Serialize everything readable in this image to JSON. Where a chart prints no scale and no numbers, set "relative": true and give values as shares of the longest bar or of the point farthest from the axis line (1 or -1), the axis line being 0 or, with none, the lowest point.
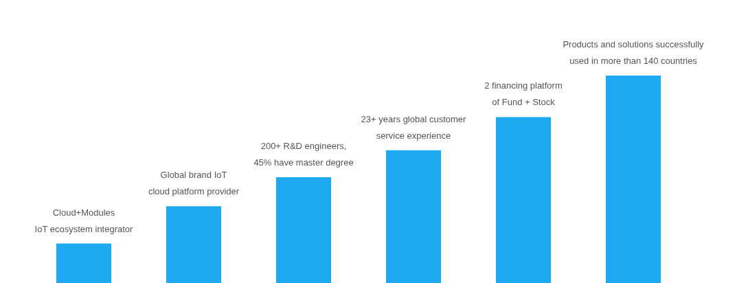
{
  "chart_data": {
    "type": "bar",
    "relative": true,
    "color": "#1eaaf1",
    "categories": [
      "Cloud+Modules\nIoT ecosystem integrator",
      "Global brand IoT\ncloud platform provider",
      "200+ R&D engineers,\n45% have master degree",
      "23+ years global customer\nservice experience",
      "2 financing platform\nof Fund + Stock",
      "Products and solutions successfully\nused in more than 140 countries"
    ],
    "values": [
      0.19,
      0.37,
      0.51,
      0.64,
      0.8,
      1
    ]
  }
}
